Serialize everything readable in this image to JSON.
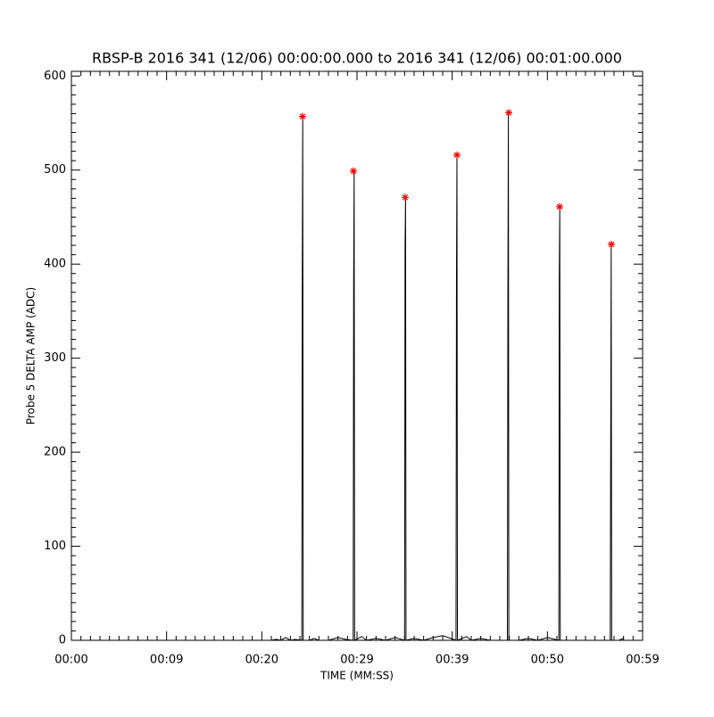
{
  "chart_data": {
    "type": "line",
    "title": "RBSP-B 2016 341 (12/06) 00:00:00.000 to 2016 341 (12/06) 00:01:00.000",
    "xlabel": "TIME (MM:SS)",
    "ylabel": "Probe 5 DELTA AMP (ADC)",
    "xlim": [
      0,
      60
    ],
    "ylim": [
      0,
      605
    ],
    "xticks": [
      {
        "value": 0,
        "label": "00:00"
      },
      {
        "value": 10,
        "label": "00:09"
      },
      {
        "value": 20,
        "label": "00:20"
      },
      {
        "value": 30,
        "label": "00:29"
      },
      {
        "value": 40,
        "label": "00:39"
      },
      {
        "value": 50,
        "label": "00:50"
      },
      {
        "value": 60,
        "label": "00:59"
      }
    ],
    "yticks": [
      0,
      100,
      200,
      300,
      400,
      500,
      600
    ],
    "minor_divisions": 10,
    "series": [
      {
        "color": "#000000",
        "mode": "line",
        "x": [
          21,
          21.5,
          22,
          22.5,
          23,
          23.5,
          24.2,
          24.25,
          24.3,
          24.35,
          25,
          25.5,
          26,
          27,
          28,
          28.8,
          29.6,
          29.65,
          29.7,
          29.75,
          30.5,
          31,
          32,
          33,
          34,
          35.0,
          35.05,
          35.1,
          35.15,
          36,
          37,
          38,
          39,
          40.4,
          40.45,
          40.5,
          40.55,
          41.5,
          42,
          43,
          44,
          45.8,
          45.85,
          45.9,
          45.95,
          47,
          48,
          49,
          50,
          51.2,
          51.25,
          51.3,
          51.35,
          52,
          53,
          54,
          55,
          56.6,
          56.65,
          56.7,
          56.75,
          57.5,
          58
        ],
        "values": [
          0,
          1,
          0,
          3,
          0,
          1,
          0,
          390,
          557,
          0,
          0,
          2,
          0,
          0,
          3,
          1,
          0,
          385,
          499,
          0,
          4,
          0,
          2,
          0,
          3,
          0,
          420,
          471,
          0,
          2,
          0,
          3,
          5,
          0,
          380,
          516,
          0,
          4,
          0,
          2,
          0,
          0,
          370,
          561,
          0,
          0,
          2,
          0,
          3,
          0,
          388,
          461,
          0,
          0,
          0,
          0,
          0,
          0,
          205,
          421,
          0,
          0,
          2
        ]
      },
      {
        "color": "#ff0000",
        "mode": "markers",
        "x": [
          24.28,
          29.63,
          35.06,
          40.5,
          45.94,
          51.28,
          56.72
        ],
        "values": [
          557,
          499,
          471,
          516,
          561,
          461,
          421
        ]
      }
    ]
  }
}
